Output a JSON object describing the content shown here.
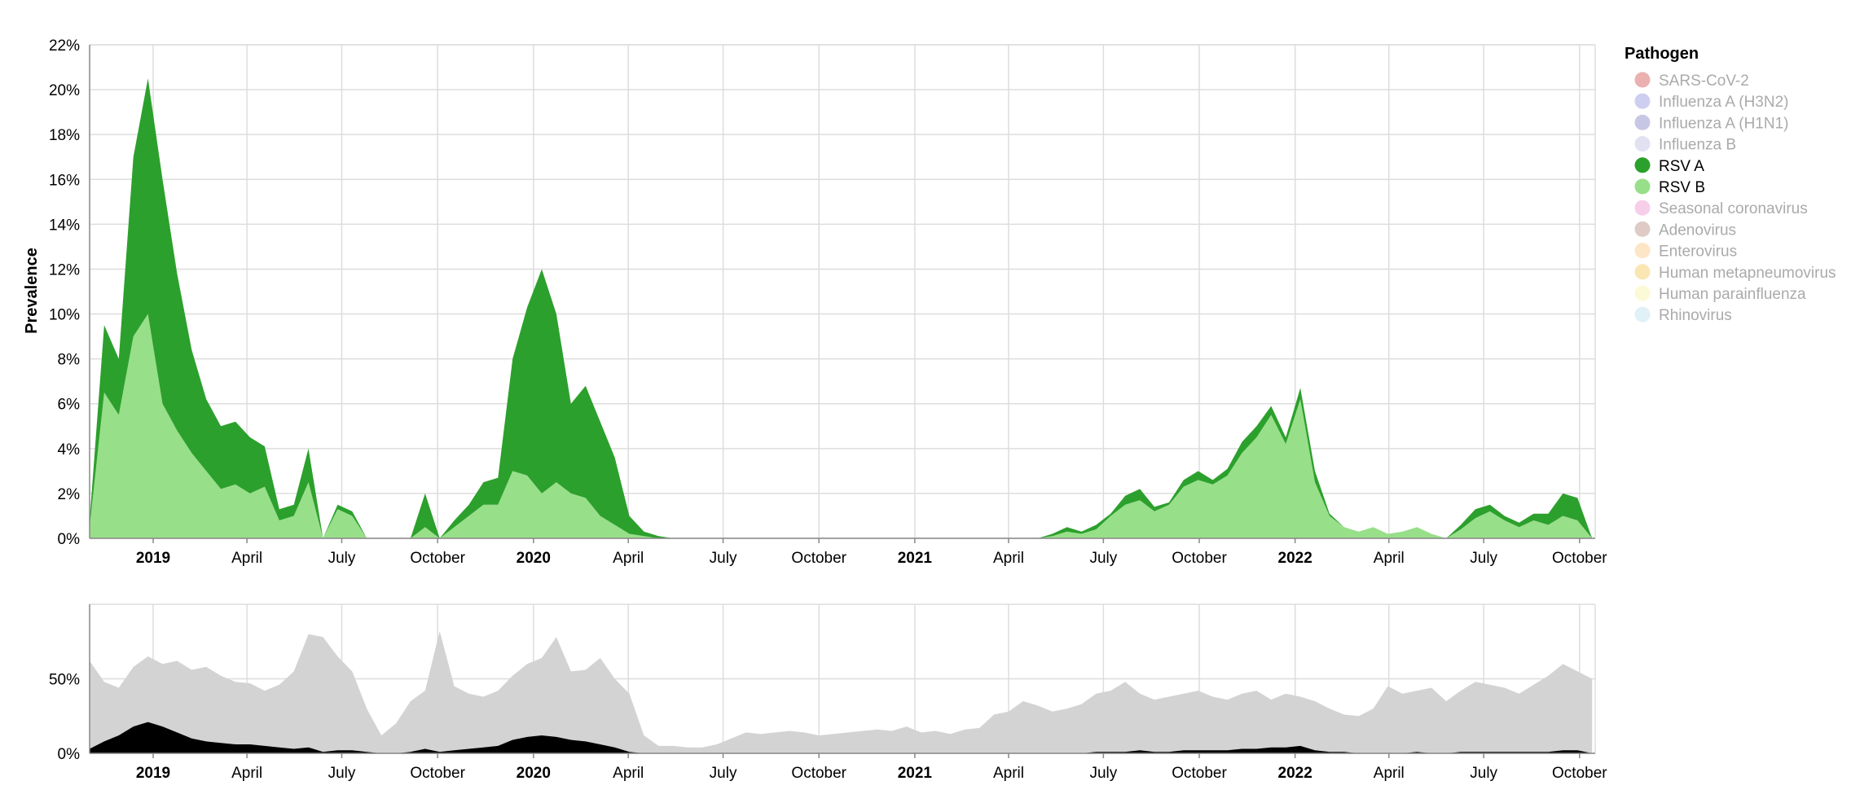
{
  "chart_data": [
    {
      "type": "area",
      "stacked": true,
      "ylabel": "Prevalence",
      "ylim": [
        0,
        22
      ],
      "y_ticks": [
        "0%",
        "2%",
        "4%",
        "6%",
        "8%",
        "10%",
        "12%",
        "14%",
        "16%",
        "18%",
        "20%",
        "22%"
      ],
      "x_range": [
        "2018-11-01",
        "2022-10-16"
      ],
      "x_ticks": [
        {
          "date": "2019-01-01",
          "label": "2019",
          "bold": true
        },
        {
          "date": "2019-04-01",
          "label": "April"
        },
        {
          "date": "2019-07-01",
          "label": "July"
        },
        {
          "date": "2019-10-01",
          "label": "October"
        },
        {
          "date": "2020-01-01",
          "label": "2020",
          "bold": true
        },
        {
          "date": "2020-04-01",
          "label": "April"
        },
        {
          "date": "2020-07-01",
          "label": "July"
        },
        {
          "date": "2020-10-01",
          "label": "October"
        },
        {
          "date": "2021-01-01",
          "label": "2021",
          "bold": true
        },
        {
          "date": "2021-04-01",
          "label": "April"
        },
        {
          "date": "2021-07-01",
          "label": "July"
        },
        {
          "date": "2021-10-01",
          "label": "October"
        },
        {
          "date": "2022-01-01",
          "label": "2022",
          "bold": true
        },
        {
          "date": "2022-04-01",
          "label": "April"
        },
        {
          "date": "2022-07-01",
          "label": "July"
        },
        {
          "date": "2022-10-01",
          "label": "October"
        }
      ],
      "grid": true,
      "x": [
        "2018-11-01",
        "2018-11-15",
        "2018-11-29",
        "2018-12-13",
        "2018-12-27",
        "2019-01-10",
        "2019-01-24",
        "2019-02-07",
        "2019-02-21",
        "2019-03-07",
        "2019-03-21",
        "2019-04-04",
        "2019-04-18",
        "2019-05-02",
        "2019-05-16",
        "2019-05-30",
        "2019-06-13",
        "2019-06-27",
        "2019-07-11",
        "2019-07-25",
        "2019-08-08",
        "2019-08-22",
        "2019-09-05",
        "2019-09-19",
        "2019-10-03",
        "2019-10-17",
        "2019-10-31",
        "2019-11-14",
        "2019-11-28",
        "2019-12-12",
        "2019-12-26",
        "2020-01-09",
        "2020-01-23",
        "2020-02-06",
        "2020-02-20",
        "2020-03-05",
        "2020-03-19",
        "2020-04-02",
        "2020-04-16",
        "2020-04-30",
        "2020-05-14",
        "2020-05-28",
        "2020-06-11",
        "2020-06-25",
        "2020-07-09",
        "2020-07-23",
        "2020-08-06",
        "2020-08-20",
        "2020-09-03",
        "2020-09-17",
        "2020-10-01",
        "2020-10-15",
        "2020-10-29",
        "2020-11-12",
        "2020-11-26",
        "2020-12-10",
        "2020-12-24",
        "2021-01-07",
        "2021-01-21",
        "2021-02-04",
        "2021-02-18",
        "2021-03-04",
        "2021-03-18",
        "2021-04-01",
        "2021-04-15",
        "2021-04-29",
        "2021-05-13",
        "2021-05-27",
        "2021-06-10",
        "2021-06-24",
        "2021-07-08",
        "2021-07-22",
        "2021-08-05",
        "2021-08-19",
        "2021-09-02",
        "2021-09-16",
        "2021-09-30",
        "2021-10-14",
        "2021-10-28",
        "2021-11-11",
        "2021-11-25",
        "2021-12-09",
        "2021-12-23",
        "2022-01-06",
        "2022-01-20",
        "2022-02-03",
        "2022-02-17",
        "2022-03-03",
        "2022-03-17",
        "2022-03-31",
        "2022-04-14",
        "2022-04-28",
        "2022-05-12",
        "2022-05-26",
        "2022-06-09",
        "2022-06-23",
        "2022-07-07",
        "2022-07-21",
        "2022-08-04",
        "2022-08-18",
        "2022-09-01",
        "2022-09-15",
        "2022-09-29",
        "2022-10-13"
      ],
      "series": [
        {
          "name": "RSV B",
          "color": "#98df8a",
          "values": [
            0.5,
            6.5,
            5.5,
            9.0,
            10.0,
            6.0,
            4.8,
            3.8,
            3.0,
            2.2,
            2.4,
            2.0,
            2.3,
            0.8,
            1.0,
            2.5,
            0.0,
            1.3,
            1.0,
            0.0,
            0.0,
            0.0,
            0.0,
            0.5,
            0.0,
            0.5,
            1.0,
            1.5,
            1.5,
            3.0,
            2.8,
            2.0,
            2.5,
            2.0,
            1.8,
            1.0,
            0.6,
            0.2,
            0.1,
            0.0,
            0.0,
            0.0,
            0.0,
            0.0,
            0.0,
            0.0,
            0.0,
            0.0,
            0.0,
            0.0,
            0.0,
            0.0,
            0.0,
            0.0,
            0.0,
            0.0,
            0.0,
            0.0,
            0.0,
            0.0,
            0.0,
            0.0,
            0.0,
            0.0,
            0.0,
            0.0,
            0.1,
            0.3,
            0.2,
            0.4,
            1.0,
            1.5,
            1.7,
            1.2,
            1.5,
            2.3,
            2.6,
            2.4,
            2.8,
            3.8,
            4.5,
            5.5,
            4.2,
            6.2,
            2.5,
            1.0,
            0.5,
            0.3,
            0.5,
            0.2,
            0.3,
            0.5,
            0.2,
            0.0,
            0.4,
            0.9,
            1.2,
            0.8,
            0.5,
            0.8,
            0.6,
            1.0,
            0.8,
            0.0
          ]
        },
        {
          "name": "RSV A",
          "color": "#2ca02c",
          "values": [
            0.3,
            3.0,
            2.5,
            8.0,
            10.5,
            10.0,
            7.0,
            4.6,
            3.2,
            2.8,
            2.8,
            2.5,
            1.8,
            0.5,
            0.5,
            1.5,
            0.0,
            0.2,
            0.2,
            0.0,
            0.0,
            0.0,
            0.0,
            1.5,
            0.0,
            0.3,
            0.5,
            1.0,
            1.2,
            5.0,
            7.5,
            10.0,
            7.5,
            4.0,
            5.0,
            4.2,
            3.0,
            0.8,
            0.2,
            0.1,
            0.0,
            0.0,
            0.0,
            0.0,
            0.0,
            0.0,
            0.0,
            0.0,
            0.0,
            0.0,
            0.0,
            0.0,
            0.0,
            0.0,
            0.0,
            0.0,
            0.0,
            0.0,
            0.0,
            0.0,
            0.0,
            0.0,
            0.0,
            0.0,
            0.0,
            0.0,
            0.1,
            0.2,
            0.1,
            0.2,
            0.1,
            0.4,
            0.5,
            0.2,
            0.1,
            0.3,
            0.4,
            0.2,
            0.3,
            0.5,
            0.5,
            0.4,
            0.3,
            0.5,
            0.5,
            0.1,
            0.0,
            0.0,
            0.0,
            0.0,
            0.0,
            0.0,
            0.0,
            0.0,
            0.2,
            0.4,
            0.3,
            0.2,
            0.2,
            0.3,
            0.5,
            1.0,
            1.0,
            0.0
          ]
        }
      ]
    },
    {
      "type": "area",
      "ylim": [
        0,
        100
      ],
      "y_ticks": [
        "0%",
        "50%"
      ],
      "grid": true,
      "x_ticks_same_as_above": true,
      "x": [
        "2018-11-01",
        "2018-11-15",
        "2018-11-29",
        "2018-12-13",
        "2018-12-27",
        "2019-01-10",
        "2019-01-24",
        "2019-02-07",
        "2019-02-21",
        "2019-03-07",
        "2019-03-21",
        "2019-04-04",
        "2019-04-18",
        "2019-05-02",
        "2019-05-16",
        "2019-05-30",
        "2019-06-13",
        "2019-06-27",
        "2019-07-11",
        "2019-07-25",
        "2019-08-08",
        "2019-08-22",
        "2019-09-05",
        "2019-09-19",
        "2019-10-03",
        "2019-10-17",
        "2019-10-31",
        "2019-11-14",
        "2019-11-28",
        "2019-12-12",
        "2019-12-26",
        "2020-01-09",
        "2020-01-23",
        "2020-02-06",
        "2020-02-20",
        "2020-03-05",
        "2020-03-19",
        "2020-04-02",
        "2020-04-16",
        "2020-04-30",
        "2020-05-14",
        "2020-05-28",
        "2020-06-11",
        "2020-06-25",
        "2020-07-09",
        "2020-07-23",
        "2020-08-06",
        "2020-08-20",
        "2020-09-03",
        "2020-09-17",
        "2020-10-01",
        "2020-10-15",
        "2020-10-29",
        "2020-11-12",
        "2020-11-26",
        "2020-12-10",
        "2020-12-24",
        "2021-01-07",
        "2021-01-21",
        "2021-02-04",
        "2021-02-18",
        "2021-03-04",
        "2021-03-18",
        "2021-04-01",
        "2021-04-15",
        "2021-04-29",
        "2021-05-13",
        "2021-05-27",
        "2021-06-10",
        "2021-06-24",
        "2021-07-08",
        "2021-07-22",
        "2021-08-05",
        "2021-08-19",
        "2021-09-02",
        "2021-09-16",
        "2021-09-30",
        "2021-10-14",
        "2021-10-28",
        "2021-11-11",
        "2021-11-25",
        "2021-12-09",
        "2021-12-23",
        "2022-01-06",
        "2022-01-20",
        "2022-02-03",
        "2022-02-17",
        "2022-03-03",
        "2022-03-17",
        "2022-03-31",
        "2022-04-14",
        "2022-04-28",
        "2022-05-12",
        "2022-05-26",
        "2022-06-09",
        "2022-06-23",
        "2022-07-07",
        "2022-07-21",
        "2022-08-04",
        "2022-08-18",
        "2022-09-01",
        "2022-09-15",
        "2022-09-29",
        "2022-10-13"
      ],
      "series": [
        {
          "name": "",
          "color": "#d3d3d3",
          "values": [
            62,
            48,
            44,
            58,
            65,
            60,
            62,
            56,
            58,
            52,
            48,
            47,
            42,
            46,
            55,
            80,
            78,
            65,
            55,
            30,
            12,
            20,
            35,
            42,
            82,
            45,
            40,
            38,
            42,
            52,
            60,
            64,
            78,
            55,
            56,
            64,
            50,
            40,
            12,
            5,
            5,
            4,
            4,
            6,
            10,
            14,
            13,
            14,
            15,
            14,
            12,
            13,
            14,
            15,
            16,
            15,
            18,
            14,
            15,
            13,
            16,
            17,
            26,
            28,
            35,
            32,
            28,
            30,
            33,
            40,
            42,
            48,
            40,
            36,
            38,
            40,
            42,
            38,
            36,
            40,
            42,
            36,
            40,
            38,
            35,
            30,
            26,
            25,
            30,
            45,
            40,
            42,
            44,
            35,
            42,
            48,
            46,
            44,
            40,
            46,
            52,
            60,
            55,
            50
          ]
        },
        {
          "name": "",
          "color": "#000000",
          "values": [
            3,
            8,
            12,
            18,
            21,
            18,
            14,
            10,
            8,
            7,
            6,
            6,
            5,
            4,
            3,
            4,
            1,
            2,
            2,
            1,
            0,
            0,
            1,
            3,
            1,
            2,
            3,
            4,
            5,
            9,
            11,
            12,
            11,
            9,
            8,
            6,
            4,
            1,
            0,
            0,
            0,
            0,
            0,
            0,
            0,
            0,
            0,
            0,
            0,
            0,
            0,
            0,
            0,
            0,
            0,
            0,
            0,
            0,
            0,
            0,
            0,
            0,
            0,
            0,
            0,
            0,
            0,
            0,
            0,
            1,
            1,
            1,
            2,
            1,
            1,
            2,
            2,
            2,
            2,
            3,
            3,
            4,
            4,
            5,
            2,
            1,
            1,
            0,
            0,
            0,
            0,
            1,
            0,
            0,
            1,
            1,
            1,
            1,
            1,
            1,
            1,
            2,
            2,
            0
          ]
        }
      ]
    }
  ],
  "legend": {
    "title": "Pathogen",
    "items": [
      {
        "label": "SARS-CoV-2",
        "color": "#e8a2a2",
        "active": false
      },
      {
        "label": "Influenza A (H3N2)",
        "color": "#c6c6ef",
        "active": false
      },
      {
        "label": "Influenza A (H1N1)",
        "color": "#bdbde0",
        "active": false
      },
      {
        "label": "Influenza B",
        "color": "#dcdcf0",
        "active": false
      },
      {
        "label": "RSV A",
        "color": "#2ca02c",
        "active": true
      },
      {
        "label": "RSV B",
        "color": "#98df8a",
        "active": true
      },
      {
        "label": "Seasonal coronavirus",
        "color": "#f5c6e6",
        "active": false
      },
      {
        "label": "Adenovirus",
        "color": "#d8c2bb",
        "active": false
      },
      {
        "label": "Enterovirus",
        "color": "#fde0bd",
        "active": false
      },
      {
        "label": "Human metapneumovirus",
        "color": "#f9e2a6",
        "active": false
      },
      {
        "label": "Human parainfluenza",
        "color": "#fbf8d0",
        "active": false
      },
      {
        "label": "Rhinovirus",
        "color": "#dbeef6",
        "active": false
      }
    ]
  }
}
